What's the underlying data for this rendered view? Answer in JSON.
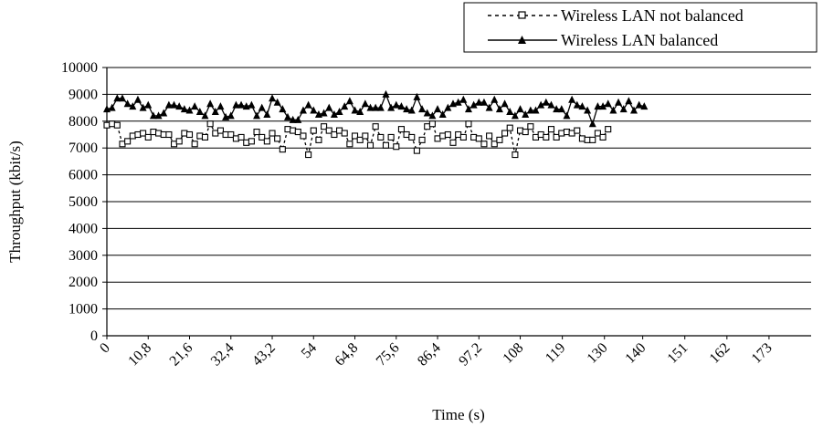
{
  "chart_data": {
    "type": "line",
    "title": "",
    "xlabel": "Time (s)",
    "ylabel": "Throughput (kbit/s)",
    "ylim": [
      0,
      10000
    ],
    "xlim": [
      0,
      184
    ],
    "yticks": [
      0,
      1000,
      2000,
      3000,
      4000,
      5000,
      6000,
      7000,
      8000,
      9000,
      10000
    ],
    "xtick_labels": [
      "0",
      "10,8",
      "21,6",
      "32,4",
      "43,2",
      "54",
      "64,8",
      "75,6",
      "86,4",
      "97,2",
      "108",
      "119",
      "130",
      "140",
      "151",
      "162",
      "173"
    ],
    "xtick_values": [
      0,
      10.8,
      21.6,
      32.4,
      43.2,
      54,
      64.8,
      75.6,
      86.4,
      97.2,
      108,
      119,
      130,
      140,
      151,
      162,
      173
    ],
    "grid": "horizontal",
    "legend_position": "top-right",
    "sample_step_s": 1.35,
    "series": [
      {
        "name": "Wireless LAN not balanced",
        "style": "dashed",
        "marker": "square",
        "values": [
          7850,
          7900,
          7850,
          7150,
          7250,
          7450,
          7500,
          7550,
          7400,
          7600,
          7550,
          7500,
          7500,
          7150,
          7250,
          7550,
          7500,
          7150,
          7450,
          7400,
          7900,
          7550,
          7650,
          7500,
          7500,
          7350,
          7400,
          7200,
          7250,
          7600,
          7400,
          7250,
          7550,
          7350,
          6950,
          7700,
          7650,
          7600,
          7450,
          6750,
          7650,
          7300,
          7800,
          7650,
          7500,
          7650,
          7550,
          7150,
          7450,
          7300,
          7450,
          7100,
          7800,
          7400,
          7100,
          7400,
          7050,
          7700,
          7500,
          7400,
          6900,
          7300,
          7800,
          7900,
          7350,
          7450,
          7500,
          7200,
          7500,
          7400,
          7900,
          7400,
          7350,
          7150,
          7450,
          7150,
          7300,
          7550,
          7750,
          6750,
          7650,
          7600,
          7800,
          7400,
          7500,
          7400,
          7700,
          7400,
          7550,
          7600,
          7550,
          7650,
          7350,
          7300,
          7300,
          7550,
          7400,
          7700
        ]
      },
      {
        "name": "Wireless LAN balanced",
        "style": "solid",
        "marker": "triangle",
        "values": [
          8450,
          8500,
          8850,
          8850,
          8650,
          8550,
          8800,
          8500,
          8600,
          8200,
          8200,
          8300,
          8600,
          8600,
          8550,
          8450,
          8400,
          8550,
          8350,
          8200,
          8650,
          8350,
          8550,
          8150,
          8200,
          8600,
          8600,
          8550,
          8600,
          8200,
          8500,
          8250,
          8850,
          8700,
          8450,
          8150,
          8050,
          8050,
          8400,
          8600,
          8400,
          8250,
          8300,
          8500,
          8250,
          8350,
          8550,
          8750,
          8400,
          8350,
          8650,
          8500,
          8500,
          8500,
          9000,
          8500,
          8600,
          8550,
          8450,
          8400,
          8900,
          8450,
          8300,
          8200,
          8450,
          8250,
          8500,
          8650,
          8700,
          8800,
          8450,
          8600,
          8700,
          8700,
          8500,
          8800,
          8450,
          8650,
          8350,
          8200,
          8450,
          8250,
          8400,
          8400,
          8600,
          8700,
          8600,
          8450,
          8450,
          8200,
          8800,
          8600,
          8550,
          8400,
          7900,
          8550,
          8550,
          8650,
          8400,
          8700,
          8450,
          8750,
          8400,
          8600,
          8550
        ]
      }
    ]
  }
}
